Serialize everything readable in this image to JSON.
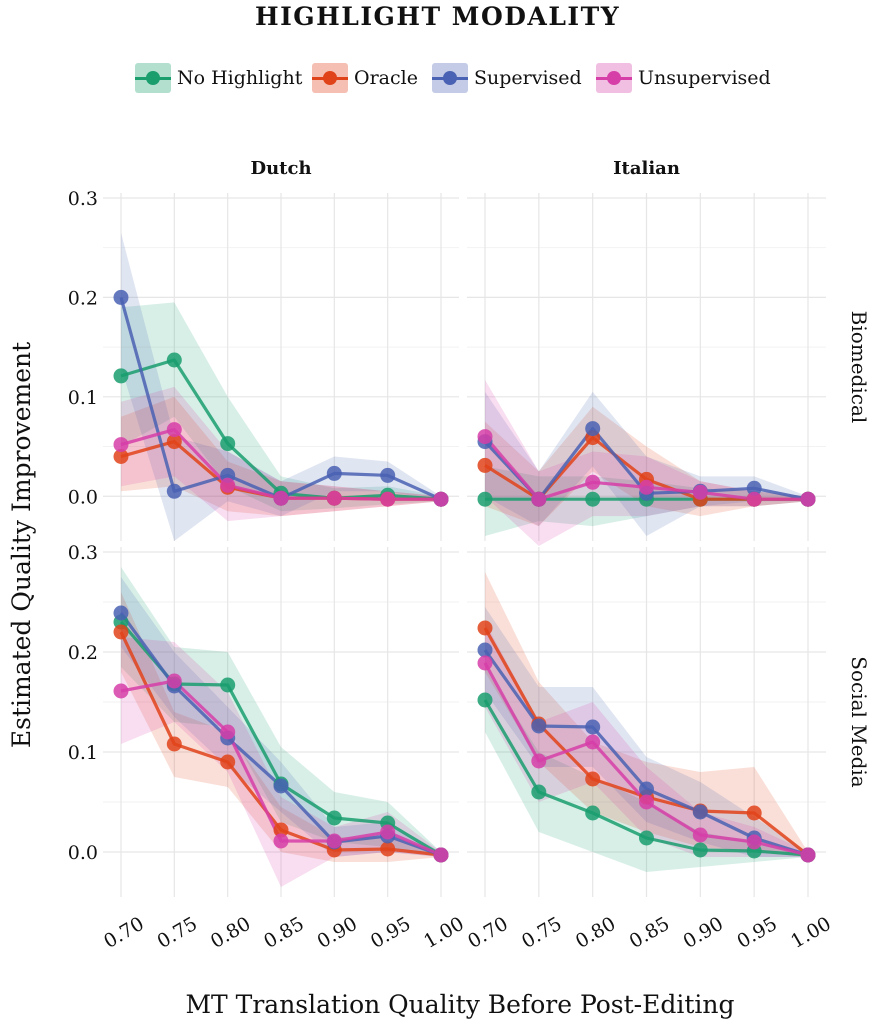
{
  "legend": {
    "title": "HIGHLIGHT MODALITY",
    "items": [
      {
        "label": "No Highlight",
        "color": "#1a9e6e"
      },
      {
        "label": "Oracle",
        "color": "#e0431a"
      },
      {
        "label": "Supervised",
        "color": "#4a62b3"
      },
      {
        "label": "Unsupervised",
        "color": "#d63ea8"
      }
    ]
  },
  "chart_data": {
    "type": "line",
    "title": "",
    "xlabel": "MT Translation Quality Before Post-Editing",
    "ylabel": "Estimated Quality Improvement",
    "x": [
      0.7,
      0.75,
      0.8,
      0.85,
      0.9,
      0.95,
      1.0
    ],
    "x_tick_labels": [
      "0.70",
      "0.75",
      "0.80",
      "0.85",
      "0.90",
      "0.95",
      "1.00"
    ],
    "y_tick_labels": [
      "0.0",
      "0.1",
      "0.2",
      "0.3"
    ],
    "y_ticks": [
      0.0,
      0.1,
      0.2,
      0.3
    ],
    "ylim": [
      -0.045,
      0.305
    ],
    "grid": true,
    "legend_position": "top",
    "column_facets": [
      "Dutch",
      "Italian"
    ],
    "row_facets": [
      "Biomedical",
      "Social Media"
    ],
    "panels": [
      {
        "column": "Dutch",
        "row": "Biomedical",
        "series": [
          {
            "name": "No Highlight",
            "values": [
              0.121,
              0.137,
              0.053,
              0.003,
              -0.002,
              0.001,
              -0.003
            ],
            "ci_low": [
              0.05,
              0.08,
              0.01,
              -0.015,
              -0.012,
              -0.008,
              -0.005
            ],
            "ci_high": [
              0.19,
              0.195,
              0.1,
              0.02,
              0.008,
              0.01,
              0.0
            ]
          },
          {
            "name": "Oracle",
            "values": [
              0.04,
              0.055,
              0.009,
              -0.002,
              -0.002,
              -0.003,
              -0.003
            ],
            "ci_low": [
              0.005,
              0.01,
              -0.015,
              -0.02,
              -0.015,
              -0.01,
              -0.005
            ],
            "ci_high": [
              0.08,
              0.1,
              0.035,
              0.015,
              0.01,
              0.005,
              0.0
            ]
          },
          {
            "name": "Supervised",
            "values": [
              0.2,
              0.005,
              0.021,
              -0.002,
              0.023,
              0.021,
              -0.003
            ],
            "ci_low": [
              0.13,
              -0.045,
              -0.005,
              -0.02,
              0.005,
              0.005,
              -0.005
            ],
            "ci_high": [
              0.265,
              0.06,
              0.045,
              0.015,
              0.04,
              0.035,
              0.0
            ]
          },
          {
            "name": "Unsupervised",
            "values": [
              0.052,
              0.067,
              0.011,
              -0.002,
              -0.002,
              -0.003,
              -0.003
            ],
            "ci_low": [
              0.01,
              0.02,
              -0.025,
              -0.02,
              -0.015,
              -0.01,
              -0.005
            ],
            "ci_high": [
              0.095,
              0.11,
              0.045,
              0.015,
              0.01,
              0.005,
              0.0
            ]
          }
        ]
      },
      {
        "column": "Italian",
        "row": "Biomedical",
        "series": [
          {
            "name": "No Highlight",
            "values": [
              -0.003,
              -0.003,
              -0.003,
              -0.003,
              -0.003,
              -0.003,
              -0.003
            ],
            "ci_low": [
              -0.04,
              -0.025,
              -0.03,
              -0.02,
              -0.01,
              -0.01,
              -0.005
            ],
            "ci_high": [
              0.03,
              0.02,
              0.02,
              0.015,
              0.008,
              0.005,
              0.0
            ]
          },
          {
            "name": "Oracle",
            "values": [
              0.031,
              -0.003,
              0.059,
              0.017,
              -0.003,
              -0.003,
              -0.003
            ],
            "ci_low": [
              -0.01,
              -0.03,
              0.025,
              -0.01,
              -0.02,
              -0.01,
              -0.005
            ],
            "ci_high": [
              0.075,
              0.025,
              0.09,
              0.05,
              0.015,
              0.005,
              0.0
            ]
          },
          {
            "name": "Supervised",
            "values": [
              0.055,
              -0.003,
              0.068,
              0.003,
              0.005,
              0.008,
              -0.003
            ],
            "ci_low": [
              0.0,
              -0.03,
              0.03,
              -0.04,
              -0.01,
              -0.005,
              -0.005
            ],
            "ci_high": [
              0.105,
              0.025,
              0.105,
              0.04,
              0.02,
              0.02,
              0.0
            ]
          },
          {
            "name": "Unsupervised",
            "values": [
              0.06,
              -0.003,
              0.014,
              0.009,
              0.004,
              -0.003,
              -0.003
            ],
            "ci_low": [
              0.0,
              -0.05,
              -0.02,
              -0.02,
              -0.01,
              -0.01,
              -0.005
            ],
            "ci_high": [
              0.117,
              0.025,
              0.045,
              0.04,
              0.015,
              0.005,
              0.0
            ]
          }
        ]
      },
      {
        "column": "Dutch",
        "row": "Social Media",
        "series": [
          {
            "name": "No Highlight",
            "values": [
              0.23,
              0.168,
              0.167,
              0.068,
              0.034,
              0.029,
              -0.003
            ],
            "ci_low": [
              0.185,
              0.13,
              0.125,
              0.03,
              0.01,
              0.005,
              -0.005
            ],
            "ci_high": [
              0.285,
              0.205,
              0.2,
              0.105,
              0.06,
              0.05,
              0.0
            ]
          },
          {
            "name": "Oracle",
            "values": [
              0.22,
              0.108,
              0.09,
              0.022,
              0.002,
              0.003,
              -0.003
            ],
            "ci_low": [
              0.18,
              0.075,
              0.065,
              0.0,
              -0.01,
              -0.01,
              -0.005
            ],
            "ci_high": [
              0.26,
              0.14,
              0.12,
              0.045,
              0.015,
              0.015,
              0.0
            ]
          },
          {
            "name": "Supervised",
            "values": [
              0.239,
              0.166,
              0.114,
              0.066,
              0.01,
              0.016,
              -0.003
            ],
            "ci_low": [
              0.205,
              0.135,
              0.085,
              0.04,
              -0.005,
              0.0,
              -0.005
            ],
            "ci_high": [
              0.275,
              0.2,
              0.145,
              0.09,
              0.025,
              0.03,
              0.0
            ]
          },
          {
            "name": "Unsupervised",
            "values": [
              0.161,
              0.171,
              0.12,
              0.011,
              0.011,
              0.02,
              -0.003
            ],
            "ci_low": [
              0.108,
              0.13,
              0.08,
              -0.035,
              -0.005,
              0.0,
              -0.005
            ],
            "ci_high": [
              0.215,
              0.21,
              0.16,
              0.055,
              0.025,
              0.04,
              0.0
            ]
          }
        ]
      },
      {
        "column": "Italian",
        "row": "Social Media",
        "series": [
          {
            "name": "No Highlight",
            "values": [
              0.152,
              0.06,
              0.039,
              0.014,
              0.002,
              0.001,
              -0.003
            ],
            "ci_low": [
              0.12,
              0.02,
              0.0,
              -0.02,
              -0.015,
              -0.01,
              -0.005
            ],
            "ci_high": [
              0.185,
              0.1,
              0.075,
              0.05,
              0.02,
              0.01,
              0.0
            ]
          },
          {
            "name": "Oracle",
            "values": [
              0.224,
              0.128,
              0.073,
              0.055,
              0.041,
              0.039,
              -0.003
            ],
            "ci_low": [
              0.18,
              0.09,
              0.04,
              0.02,
              0.005,
              0.0,
              -0.005
            ],
            "ci_high": [
              0.28,
              0.17,
              0.11,
              0.09,
              0.08,
              0.085,
              0.0
            ]
          },
          {
            "name": "Supervised",
            "values": [
              0.202,
              0.126,
              0.125,
              0.063,
              0.04,
              0.014,
              -0.003
            ],
            "ci_low": [
              0.16,
              0.085,
              0.085,
              0.03,
              0.01,
              -0.005,
              -0.005
            ],
            "ci_high": [
              0.245,
              0.165,
              0.165,
              0.095,
              0.07,
              0.035,
              0.0
            ]
          },
          {
            "name": "Unsupervised",
            "values": [
              0.189,
              0.091,
              0.11,
              0.05,
              0.017,
              0.01,
              -0.003
            ],
            "ci_low": [
              0.145,
              0.05,
              0.07,
              0.015,
              -0.005,
              -0.005,
              -0.005
            ],
            "ci_high": [
              0.23,
              0.13,
              0.15,
              0.085,
              0.04,
              0.025,
              0.0
            ]
          }
        ]
      }
    ]
  }
}
